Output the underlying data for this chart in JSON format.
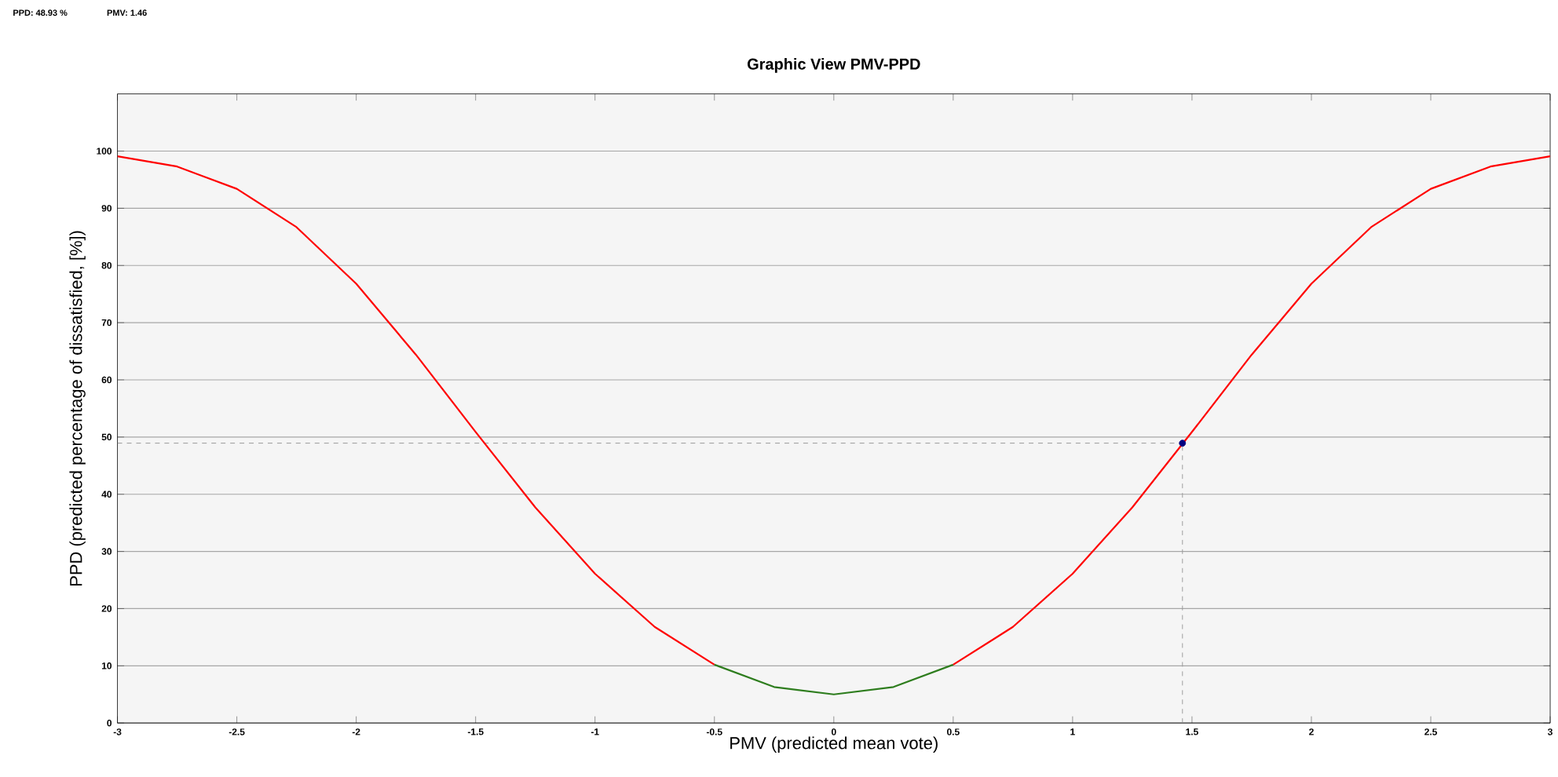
{
  "chart_data": {
    "type": "line",
    "title": "Graphic View PMV-PPD",
    "xlabel": "PMV (predicted mean vote)",
    "ylabel": "PPD (predicted percentage of dissatisfied, [%])",
    "annotations": [
      "PPD: 48.93 %",
      "PMV: 1.46"
    ],
    "series": [
      {
        "color": "#ff0000",
        "x": [
          -3,
          -2.75,
          -2.5,
          -2.25,
          -2,
          -1.75,
          -1.5,
          -1.25,
          -1,
          -0.75,
          -0.5
        ],
        "values": [
          99.1,
          97.3,
          93.4,
          86.7,
          76.8,
          64.4,
          50.9,
          37.7,
          26.1,
          16.8,
          10.2
        ]
      },
      {
        "color": "#2e7d1e",
        "x": [
          -0.5,
          -0.25,
          0,
          0.25,
          0.5
        ],
        "values": [
          10.2,
          6.3,
          5,
          6.3,
          10.2
        ]
      },
      {
        "color": "#ff0000",
        "x": [
          0.5,
          0.75,
          1,
          1.25,
          1.5,
          1.75,
          2,
          2.25,
          2.5,
          2.75,
          3
        ],
        "values": [
          10.2,
          16.8,
          26.1,
          37.7,
          50.9,
          64.4,
          76.8,
          86.7,
          93.4,
          97.3,
          99.1
        ]
      },
      {
        "type": "scatter",
        "color": "#000080",
        "marker": "circle",
        "x": [
          1.46
        ],
        "values": [
          48.93
        ]
      }
    ],
    "ref_lines": [
      {
        "axis": "x",
        "value": 1.46,
        "color": "#999999",
        "line_style": "dashed"
      },
      {
        "axis": "y",
        "value": 48.93,
        "color": "#999999",
        "line_style": "dashed"
      }
    ],
    "xlim": [
      -3,
      3
    ],
    "ylim": [
      0,
      110
    ],
    "xticks": [
      -3,
      -2.5,
      -2,
      -1.5,
      -1,
      -0.5,
      0,
      0.5,
      1,
      1.5,
      2,
      2.5,
      3
    ],
    "yticks": [
      0,
      10,
      20,
      30,
      40,
      50,
      60,
      70,
      80,
      90,
      100
    ],
    "grid": "y",
    "line_style": "solid"
  }
}
